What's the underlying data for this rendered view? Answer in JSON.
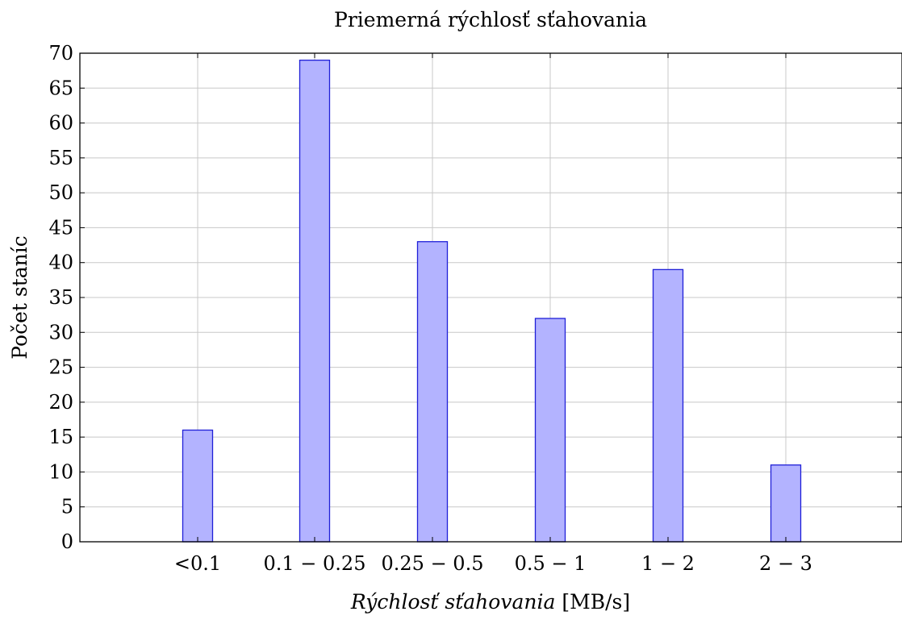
{
  "chart_data": {
    "type": "bar",
    "title": "Priemerná rýchlosť sťahovania",
    "xlabel_italic": "Rýchlosť sťahovania",
    "xlabel_unit": "[MB/s]",
    "ylabel": "Počet staníc",
    "categories": [
      "<0.1",
      "0.1 − 0.25",
      "0.25 − 0.5",
      "0.5 − 1",
      "1 − 2",
      "2 − 3"
    ],
    "values": [
      16,
      69,
      43,
      32,
      39,
      11
    ],
    "ylim": [
      0,
      70
    ],
    "yticks": [
      0,
      5,
      10,
      15,
      20,
      25,
      30,
      35,
      40,
      45,
      50,
      55,
      60,
      65,
      70
    ],
    "grid": true,
    "bar_fill": "#b3b3ff",
    "bar_stroke": "#2020d8"
  }
}
